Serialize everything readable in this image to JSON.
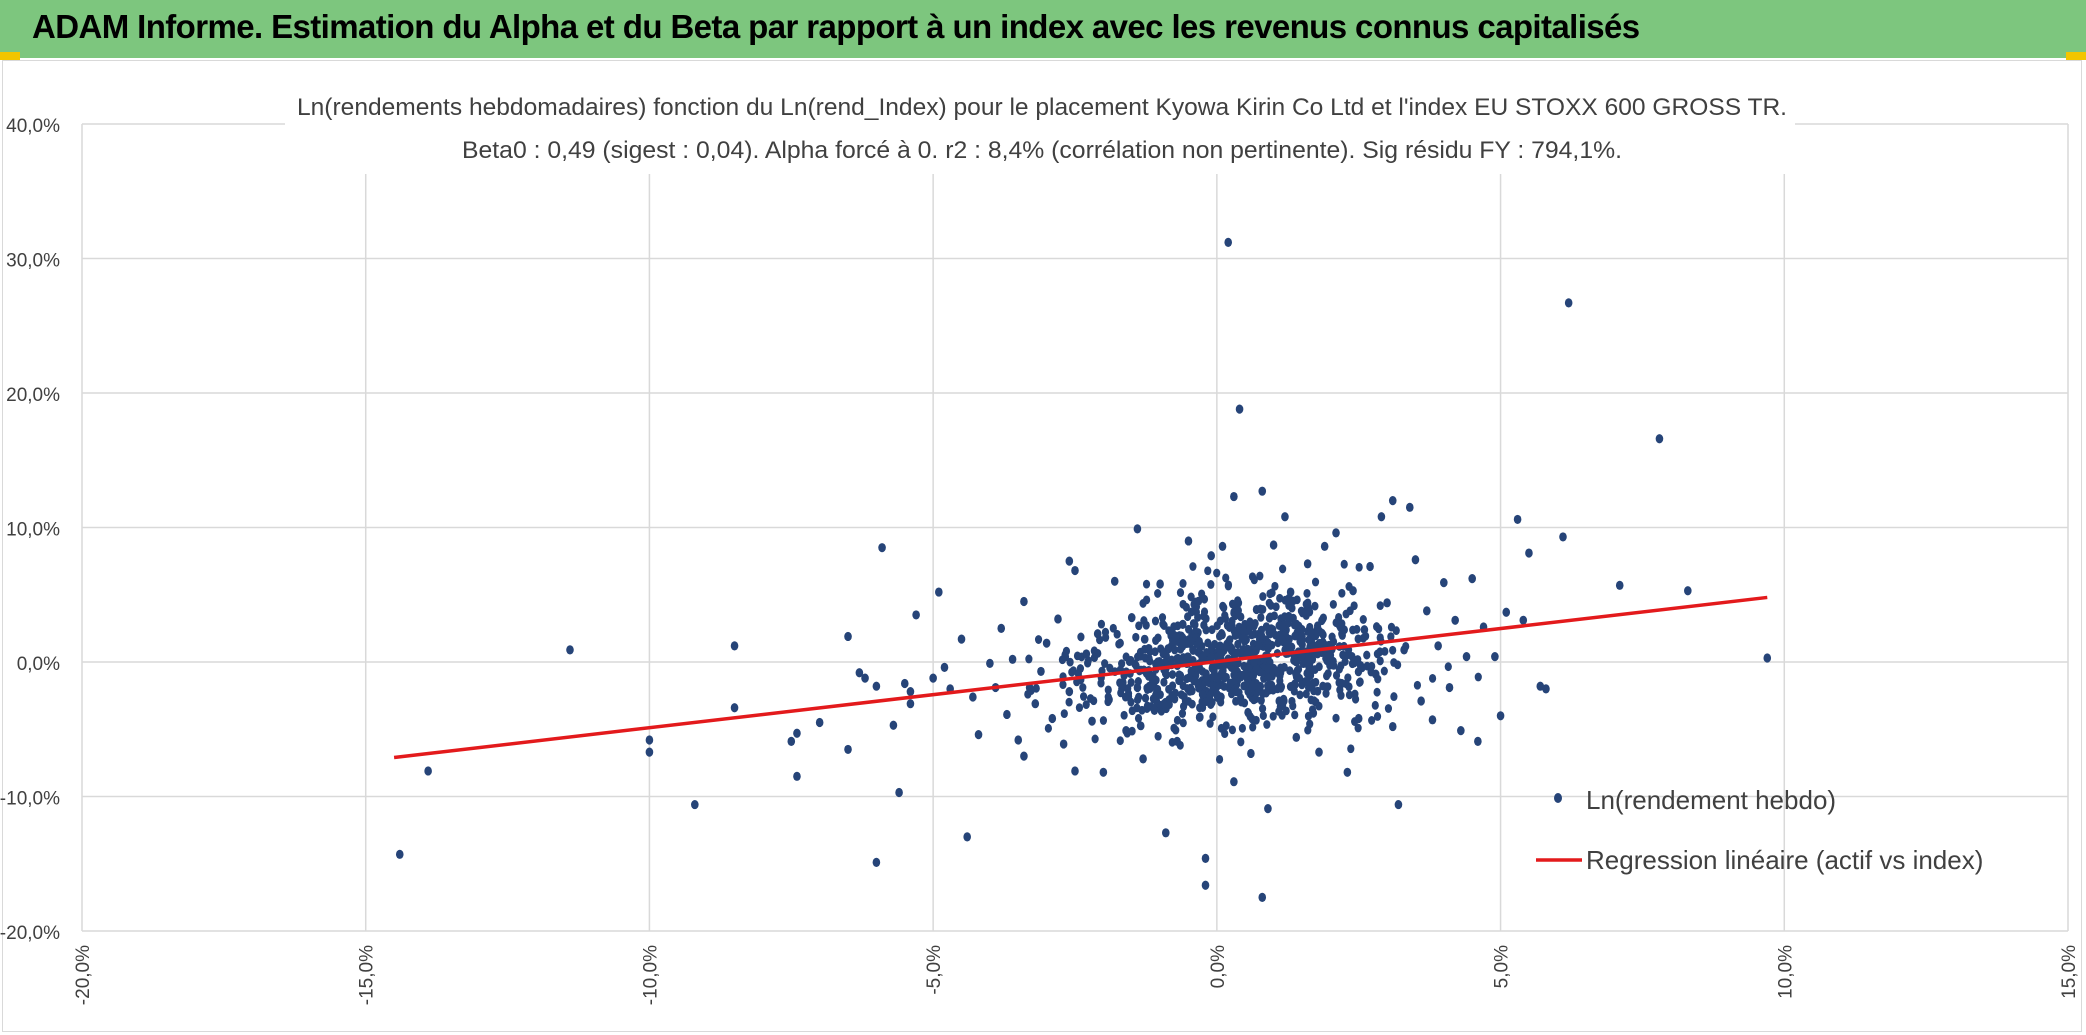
{
  "header": {
    "title": "ADAM Informe. Estimation du Alpha et du Beta par rapport à un index avec les revenus connus capitalisés"
  },
  "colors": {
    "header_bg": "#7dc67e",
    "points": "#264478",
    "regression": "#e31a1c",
    "grid": "#d9d9d9"
  },
  "chart_data": {
    "type": "scatter",
    "title": "Ln(rendements hebdomadaires) fonction du Ln(rend_Index) pour le placement Kyowa Kirin Co Ltd et l'index EU STOXX 600 GROSS TR.",
    "subtitle": "Beta0 : 0,49 (sigest : 0,04). Alpha forcé à 0. r2 : 8,4% (corrélation non pertinente). Sig résidu FY : 794,1%.",
    "xlabel": "",
    "ylabel": "",
    "xlim": [
      -20,
      15
    ],
    "ylim": [
      -20,
      40
    ],
    "x_ticks": [
      -20,
      -15,
      -10,
      -5,
      0,
      5,
      10,
      15
    ],
    "y_ticks": [
      -20,
      -10,
      0,
      10,
      20,
      30,
      40
    ],
    "x_tick_labels": [
      "-20,0%",
      "-15,0%",
      "-10,0%",
      "-5,0%",
      "0,0%",
      "5,0%",
      "10,0%",
      "15,0%"
    ],
    "y_tick_labels": [
      "-20,0%",
      "-10,0%",
      "0,0%",
      "10,0%",
      "20,0%",
      "30,0%",
      "40,0%"
    ],
    "grid": true,
    "legend_position": "bottom-right",
    "series": [
      {
        "name": "Ln(rendement hebdo)",
        "kind": "points",
        "color": "#264478",
        "points": [
          [
            -14.4,
            -14.3
          ],
          [
            -13.9,
            -8.1
          ],
          [
            -11.4,
            0.9
          ],
          [
            -10.0,
            -5.8
          ],
          [
            -10.0,
            -6.7
          ],
          [
            -9.2,
            -10.6
          ],
          [
            -8.5,
            1.2
          ],
          [
            -8.5,
            -3.4
          ],
          [
            -7.5,
            -5.9
          ],
          [
            -7.4,
            -5.3
          ],
          [
            -7.4,
            -8.5
          ],
          [
            -7.0,
            -4.5
          ],
          [
            -6.5,
            1.9
          ],
          [
            -6.5,
            -6.5
          ],
          [
            -6.3,
            -0.8
          ],
          [
            -6.2,
            -1.2
          ],
          [
            -6.0,
            -14.9
          ],
          [
            -6.0,
            -1.8
          ],
          [
            -5.9,
            8.5
          ],
          [
            -5.7,
            -4.7
          ],
          [
            -5.6,
            -9.7
          ],
          [
            -5.5,
            -1.6
          ],
          [
            -5.4,
            -2.2
          ],
          [
            -5.4,
            -3.1
          ],
          [
            -5.3,
            3.5
          ],
          [
            -5.0,
            -1.2
          ],
          [
            -4.9,
            5.2
          ],
          [
            -4.8,
            -0.4
          ],
          [
            -4.7,
            -2.0
          ],
          [
            -4.5,
            1.7
          ],
          [
            -4.4,
            -13.0
          ],
          [
            -4.3,
            -2.6
          ],
          [
            -4.2,
            -5.4
          ],
          [
            -4.0,
            -0.1
          ],
          [
            -3.9,
            -1.9
          ],
          [
            -3.8,
            2.5
          ],
          [
            -3.7,
            -3.9
          ],
          [
            -3.6,
            0.2
          ],
          [
            -3.5,
            -5.8
          ],
          [
            -3.4,
            -7.0
          ],
          [
            -3.4,
            4.5
          ],
          [
            -3.3,
            -1.9
          ],
          [
            -3.2,
            -3.1
          ],
          [
            -3.1,
            -0.7
          ],
          [
            -3.0,
            1.4
          ],
          [
            -2.9,
            -4.2
          ],
          [
            -2.8,
            3.2
          ],
          [
            -2.7,
            -6.1
          ],
          [
            -2.6,
            7.5
          ],
          [
            -2.6,
            -2.2
          ],
          [
            -2.5,
            6.8
          ],
          [
            -2.5,
            -8.1
          ],
          [
            -2.4,
            -1.3
          ],
          [
            -2.3,
            0.6
          ],
          [
            -2.2,
            -4.4
          ],
          [
            -2.1,
            2.1
          ],
          [
            -2.0,
            -8.2
          ],
          [
            -1.9,
            -2.8
          ],
          [
            -1.8,
            6.0
          ],
          [
            -1.7,
            -0.6
          ],
          [
            -1.6,
            -5.1
          ],
          [
            -1.5,
            3.3
          ],
          [
            -1.4,
            9.9
          ],
          [
            -1.4,
            -1.9
          ],
          [
            -1.3,
            -7.2
          ],
          [
            -1.2,
            1.0
          ],
          [
            -1.1,
            -3.6
          ],
          [
            -1.0,
            5.8
          ],
          [
            -0.9,
            -12.7
          ],
          [
            -0.8,
            -0.2
          ],
          [
            -0.7,
            -5.9
          ],
          [
            -0.6,
            2.8
          ],
          [
            -0.5,
            9.0
          ],
          [
            -0.4,
            -1.4
          ],
          [
            -0.3,
            -4.1
          ],
          [
            -0.2,
            -14.6
          ],
          [
            -0.2,
            -16.6
          ],
          [
            -0.1,
            7.9
          ],
          [
            0.0,
            -2.4
          ],
          [
            0.1,
            8.6
          ],
          [
            0.2,
            31.2
          ],
          [
            0.3,
            -8.9
          ],
          [
            0.3,
            12.3
          ],
          [
            0.4,
            18.8
          ],
          [
            0.5,
            -0.9
          ],
          [
            0.6,
            -6.8
          ],
          [
            0.7,
            3.9
          ],
          [
            0.8,
            12.7
          ],
          [
            0.8,
            -17.5
          ],
          [
            0.9,
            -10.9
          ],
          [
            1.0,
            8.7
          ],
          [
            1.1,
            -2.9
          ],
          [
            1.2,
            10.8
          ],
          [
            1.3,
            5.2
          ],
          [
            1.4,
            -5.6
          ],
          [
            1.5,
            1.9
          ],
          [
            1.6,
            7.3
          ],
          [
            1.7,
            -3.8
          ],
          [
            1.8,
            -6.7
          ],
          [
            1.9,
            8.6
          ],
          [
            2.0,
            0.5
          ],
          [
            2.1,
            9.6
          ],
          [
            2.2,
            -1.6
          ],
          [
            2.3,
            -8.2
          ],
          [
            2.4,
            5.3
          ],
          [
            2.5,
            -4.2
          ],
          [
            2.6,
            2.4
          ],
          [
            2.7,
            7.1
          ],
          [
            2.8,
            -0.9
          ],
          [
            2.9,
            10.8
          ],
          [
            3.0,
            4.4
          ],
          [
            3.1,
            -4.8
          ],
          [
            3.1,
            12.0
          ],
          [
            3.2,
            -10.6
          ],
          [
            3.3,
            0.9
          ],
          [
            3.4,
            11.5
          ],
          [
            3.5,
            7.6
          ],
          [
            3.6,
            -2.9
          ],
          [
            3.7,
            3.8
          ],
          [
            3.8,
            -4.3
          ],
          [
            3.9,
            1.2
          ],
          [
            4.0,
            5.9
          ],
          [
            4.1,
            -1.9
          ],
          [
            4.2,
            3.1
          ],
          [
            4.3,
            -5.1
          ],
          [
            4.4,
            0.4
          ],
          [
            4.5,
            6.2
          ],
          [
            4.6,
            -5.9
          ],
          [
            4.7,
            2.6
          ],
          [
            4.9,
            0.4
          ],
          [
            5.0,
            -4.0
          ],
          [
            5.1,
            3.7
          ],
          [
            5.3,
            10.6
          ],
          [
            5.4,
            3.1
          ],
          [
            5.5,
            8.1
          ],
          [
            5.7,
            -1.8
          ],
          [
            5.8,
            -2.0
          ],
          [
            6.1,
            9.3
          ],
          [
            6.2,
            26.7
          ],
          [
            7.1,
            5.7
          ],
          [
            7.8,
            16.6
          ],
          [
            8.3,
            5.3
          ],
          [
            9.7,
            0.3
          ]
        ]
      },
      {
        "name": "Regression linéaire (actif vs index)",
        "kind": "line",
        "color": "#e31a1c",
        "points": [
          [
            -14.5,
            -7.1
          ],
          [
            9.7,
            4.8
          ]
        ]
      }
    ]
  }
}
